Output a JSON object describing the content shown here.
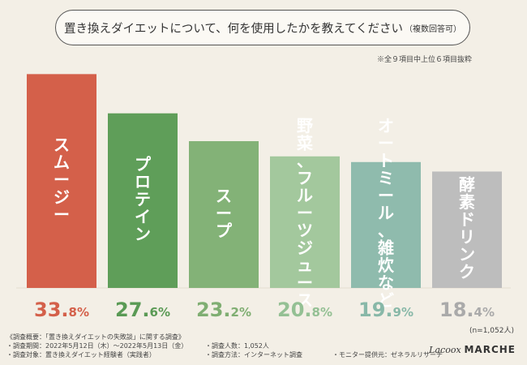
{
  "header": {
    "title": "置き換えダイエットについて、何を使用したかを教えてください",
    "title_suffix": "（複数回答可）",
    "note": "※全９項目中上位６項目抜粋"
  },
  "chart_data": {
    "type": "bar",
    "title": "置き換えダイエットについて、何を使用したかを教えてください（複数回答可）",
    "categories": [
      "スムージー",
      "プロテイン",
      "スープ",
      "野菜、フルーツジュース",
      "オートミール、雑炊など",
      "酵素ドリンク"
    ],
    "values": [
      33.8,
      27.6,
      23.2,
      20.8,
      19.9,
      18.4
    ],
    "unit": "%",
    "ylim": [
      0,
      35
    ],
    "grid": false,
    "value_colors": [
      "#d4604a",
      "#5a9a55",
      "#7fae72",
      "#94c094",
      "#88b8a8",
      "#aaaaaa"
    ],
    "bar_colors": [
      "#d4604a",
      "#5f9e59",
      "#83b277",
      "#a3c89d",
      "#8fbbad",
      "#bdbdbd"
    ],
    "label_colors": [
      "#ffffff",
      "#ffffff",
      "#ffffff",
      "#94c094",
      "#88b8a8",
      "#ffffff"
    ],
    "label_inside": [
      true,
      true,
      true,
      false,
      false,
      true
    ]
  },
  "sample_size": "(n=1,052人)",
  "footer": {
    "overview": "《調査概要：「置き換えダイエットの失敗談」に関する調査》",
    "period": "・調査期間：2022年5月12日（木）～2022年5月13日（金）",
    "subjects": "・調査対象：置き換えダイエット経験者（実践者）",
    "count": "・調査人数：1,052人",
    "method": "・調査方法：インターネット調査",
    "provider": "・モニター提供元：ゼネラルリサーチ"
  },
  "logo": {
    "script": "Lacoox",
    "brand": "MARCHE"
  }
}
